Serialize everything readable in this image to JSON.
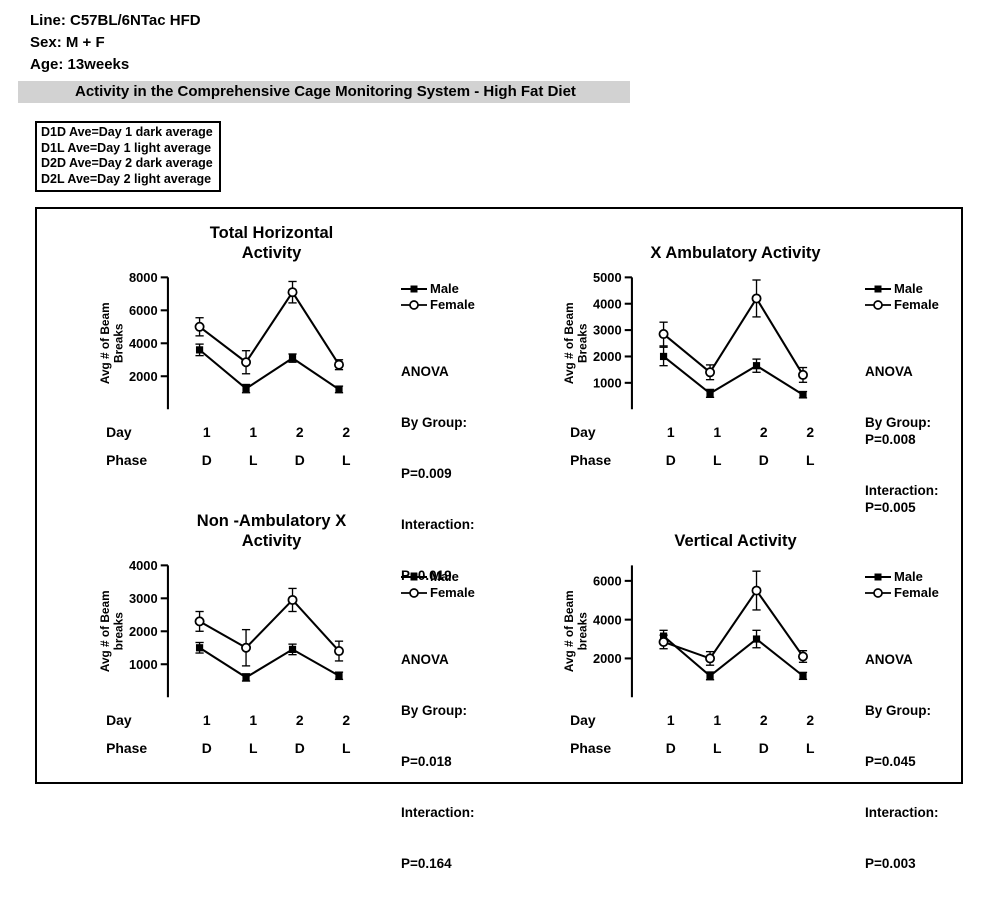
{
  "header": {
    "line": "Line: C57BL/6NTac HFD",
    "sex": "Sex: M + F",
    "age": "Age: 13weeks"
  },
  "title_bar": "Activity in the Comprehensive Cage Monitoring System - High Fat Diet",
  "key_box": [
    "D1D Ave=Day 1 dark average",
    "D1L Ave=Day 1 light average",
    "D2D Ave=Day 2 dark average",
    "D2L Ave=Day 2 light average"
  ],
  "chart_data": [
    {
      "type": "line",
      "title": "Total Horizontal\nActivity",
      "ylabel": "Avg # of Beam\nBreaks",
      "ylim": [
        0,
        8000
      ],
      "yticks": [
        2000,
        4000,
        6000,
        8000
      ],
      "x_axis": {
        "day_header": "Day",
        "day_ticks": [
          "1",
          "1",
          "2",
          "2"
        ],
        "phase_header": "Phase",
        "phase_ticks": [
          "D",
          "L",
          "D",
          "L"
        ]
      },
      "series": [
        {
          "name": "Male",
          "marker": "filled-square",
          "values": [
            3600,
            1250,
            3100,
            1200
          ],
          "errors": [
            350,
            250,
            250,
            200
          ]
        },
        {
          "name": "Female",
          "marker": "open-circle",
          "values": [
            5000,
            2850,
            7100,
            2700
          ],
          "errors": [
            550,
            700,
            650,
            300
          ]
        }
      ],
      "anova": {
        "lines": [
          "ANOVA",
          "By Group:",
          "P=0.009",
          "Interaction:",
          "P=0.019"
        ]
      }
    },
    {
      "type": "line",
      "title": "X Ambulatory Activity",
      "ylabel": "Avg # of Beam\nBreaks",
      "ylim": [
        0,
        5000
      ],
      "yticks": [
        1000,
        2000,
        3000,
        4000,
        5000
      ],
      "x_axis": {
        "day_header": "Day",
        "day_ticks": [
          "1",
          "1",
          "2",
          "2"
        ],
        "phase_header": "Phase",
        "phase_ticks": [
          "D",
          "L",
          "D",
          "L"
        ]
      },
      "series": [
        {
          "name": "Male",
          "marker": "filled-square",
          "values": [
            2000,
            600,
            1650,
            550
          ],
          "errors": [
            350,
            150,
            250,
            120
          ]
        },
        {
          "name": "Female",
          "marker": "open-circle",
          "values": [
            2850,
            1400,
            4200,
            1300
          ],
          "errors": [
            450,
            280,
            700,
            280
          ]
        }
      ],
      "anova": {
        "lines": [
          "ANOVA",
          "By Group:   P=0.008",
          "Interaction: P=0.005"
        ]
      }
    },
    {
      "type": "line",
      "title": "Non -Ambulatory X\nActivity",
      "ylabel": "Avg # of Beam\nbreaks",
      "ylim": [
        0,
        4000
      ],
      "yticks": [
        1000,
        2000,
        3000,
        4000
      ],
      "x_axis": {
        "day_header": "Day",
        "day_ticks": [
          "1",
          "1",
          "2",
          "2"
        ],
        "phase_header": "Phase",
        "phase_ticks": [
          "D",
          "L",
          "D",
          "L"
        ]
      },
      "series": [
        {
          "name": "Male",
          "marker": "filled-square",
          "values": [
            1500,
            600,
            1450,
            650
          ],
          "errors": [
            160,
            110,
            160,
            110
          ]
        },
        {
          "name": "Female",
          "marker": "open-circle",
          "values": [
            2300,
            1500,
            2950,
            1400
          ],
          "errors": [
            300,
            550,
            350,
            300
          ]
        }
      ],
      "anova": {
        "lines": [
          "ANOVA",
          "By Group:",
          "P=0.018",
          "Interaction:",
          "P=0.164"
        ]
      }
    },
    {
      "type": "line",
      "title": "Vertical Activity",
      "ylabel": "Avg # of Beam\nbreaks",
      "ylim": [
        0,
        6800
      ],
      "yticks": [
        2000,
        4000,
        6000
      ],
      "x_axis": {
        "day_header": "Day",
        "day_ticks": [
          "1",
          "1",
          "2",
          "2"
        ],
        "phase_header": "Phase",
        "phase_ticks": [
          "D",
          "L",
          "D",
          "L"
        ]
      },
      "series": [
        {
          "name": "Male",
          "marker": "filled-square",
          "values": [
            3150,
            1100,
            3000,
            1100
          ],
          "errors": [
            300,
            200,
            450,
            180
          ]
        },
        {
          "name": "Female",
          "marker": "open-circle",
          "values": [
            2850,
            2000,
            5500,
            2100
          ],
          "errors": [
            350,
            350,
            1000,
            300
          ]
        }
      ],
      "anova": {
        "lines": [
          "ANOVA",
          "By Group:",
          "P=0.045",
          "Interaction:",
          "P=0.003"
        ]
      }
    }
  ]
}
